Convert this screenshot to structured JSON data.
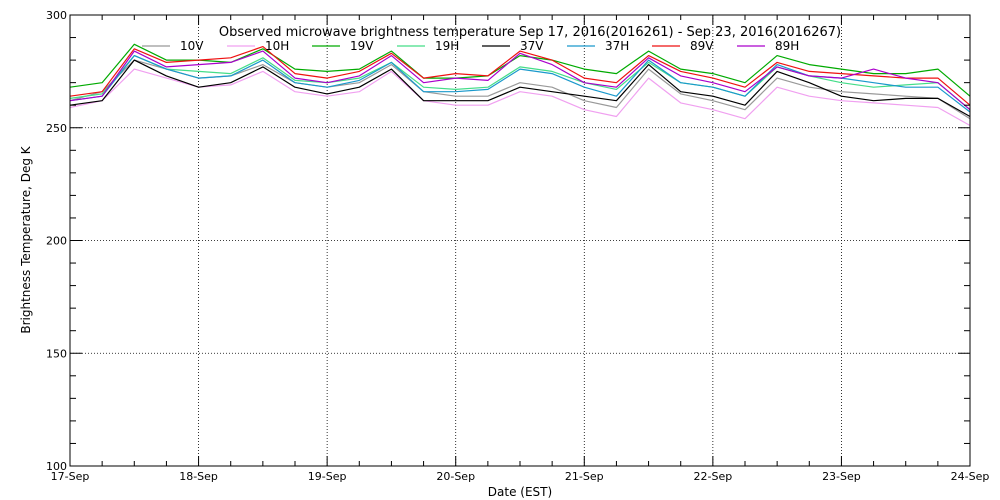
{
  "chart_data": {
    "type": "line",
    "title": "Observed microwave brightness temperature Sep 17, 2016(2016261) - Sep 23, 2016(2016267)",
    "xlabel": "Date (EST)",
    "ylabel": "Brightness Temperature, Deg K",
    "xlim": [
      0,
      7
    ],
    "ylim": [
      100,
      300
    ],
    "yticks": [
      100,
      150,
      200,
      250,
      300
    ],
    "ytick_labels": [
      "100",
      "150",
      "200",
      "250",
      "300"
    ],
    "xtick_labels": [
      "17-Sep",
      "18-Sep",
      "19-Sep",
      "20-Sep",
      "21-Sep",
      "22-Sep",
      "23-Sep",
      "24-Sep"
    ],
    "grid": true,
    "legend_position": "top",
    "x": [
      0,
      0.25,
      0.5,
      0.75,
      1.0,
      1.25,
      1.5,
      1.75,
      2.0,
      2.25,
      2.5,
      2.75,
      3.0,
      3.25,
      3.5,
      3.75,
      4.0,
      4.25,
      4.5,
      4.75,
      5.0,
      5.25,
      5.5,
      5.75,
      6.0,
      6.25,
      6.5,
      6.75,
      7.0
    ],
    "series": [
      {
        "name": "10V",
        "color": "#999999",
        "values": [
          262,
          266,
          280,
          276,
          272,
          273,
          278,
          270,
          268,
          270,
          278,
          266,
          264,
          264,
          270,
          268,
          262,
          259,
          276,
          265,
          262,
          258,
          272,
          268,
          266,
          265,
          264,
          263,
          254
        ]
      },
      {
        "name": "10H",
        "color": "#f0a0f0",
        "values": [
          259,
          262,
          276,
          272,
          268,
          269,
          275,
          266,
          264,
          266,
          275,
          262,
          260,
          260,
          266,
          264,
          258,
          255,
          272,
          261,
          258,
          254,
          268,
          264,
          262,
          261,
          260,
          259,
          251
        ]
      },
      {
        "name": "19V",
        "color": "#00aa00",
        "values": [
          268,
          270,
          287,
          280,
          280,
          279,
          285,
          276,
          275,
          276,
          284,
          272,
          272,
          273,
          282,
          280,
          276,
          274,
          284,
          276,
          274,
          270,
          282,
          278,
          276,
          274,
          274,
          276,
          264
        ]
      },
      {
        "name": "19H",
        "color": "#44dd88",
        "values": [
          263,
          265,
          282,
          276,
          275,
          274,
          281,
          271,
          270,
          272,
          279,
          268,
          267,
          268,
          277,
          275,
          270,
          267,
          279,
          270,
          268,
          264,
          277,
          273,
          270,
          268,
          269,
          270,
          258
        ]
      },
      {
        "name": "37V",
        "color": "#000000",
        "values": [
          260,
          262,
          280,
          273,
          268,
          270,
          277,
          268,
          265,
          268,
          276,
          262,
          262,
          262,
          268,
          266,
          264,
          262,
          278,
          266,
          264,
          260,
          275,
          270,
          264,
          262,
          263,
          263,
          255
        ]
      },
      {
        "name": "37H",
        "color": "#1a99cc",
        "values": [
          262,
          264,
          282,
          276,
          272,
          273,
          280,
          270,
          268,
          271,
          279,
          266,
          266,
          267,
          276,
          274,
          268,
          264,
          280,
          270,
          268,
          264,
          278,
          273,
          272,
          270,
          268,
          268,
          257
        ]
      },
      {
        "name": "89V",
        "color": "#ee1111",
        "values": [
          264,
          266,
          285,
          279,
          280,
          281,
          286,
          274,
          272,
          275,
          283,
          272,
          274,
          273,
          284,
          280,
          272,
          270,
          282,
          275,
          272,
          268,
          279,
          275,
          274,
          273,
          272,
          272,
          260
        ]
      },
      {
        "name": "89H",
        "color": "#aa00cc",
        "values": [
          262,
          264,
          284,
          277,
          278,
          279,
          284,
          272,
          270,
          273,
          282,
          270,
          272,
          271,
          283,
          278,
          270,
          268,
          281,
          273,
          270,
          266,
          277,
          273,
          272,
          276,
          272,
          270,
          258
        ]
      }
    ]
  }
}
